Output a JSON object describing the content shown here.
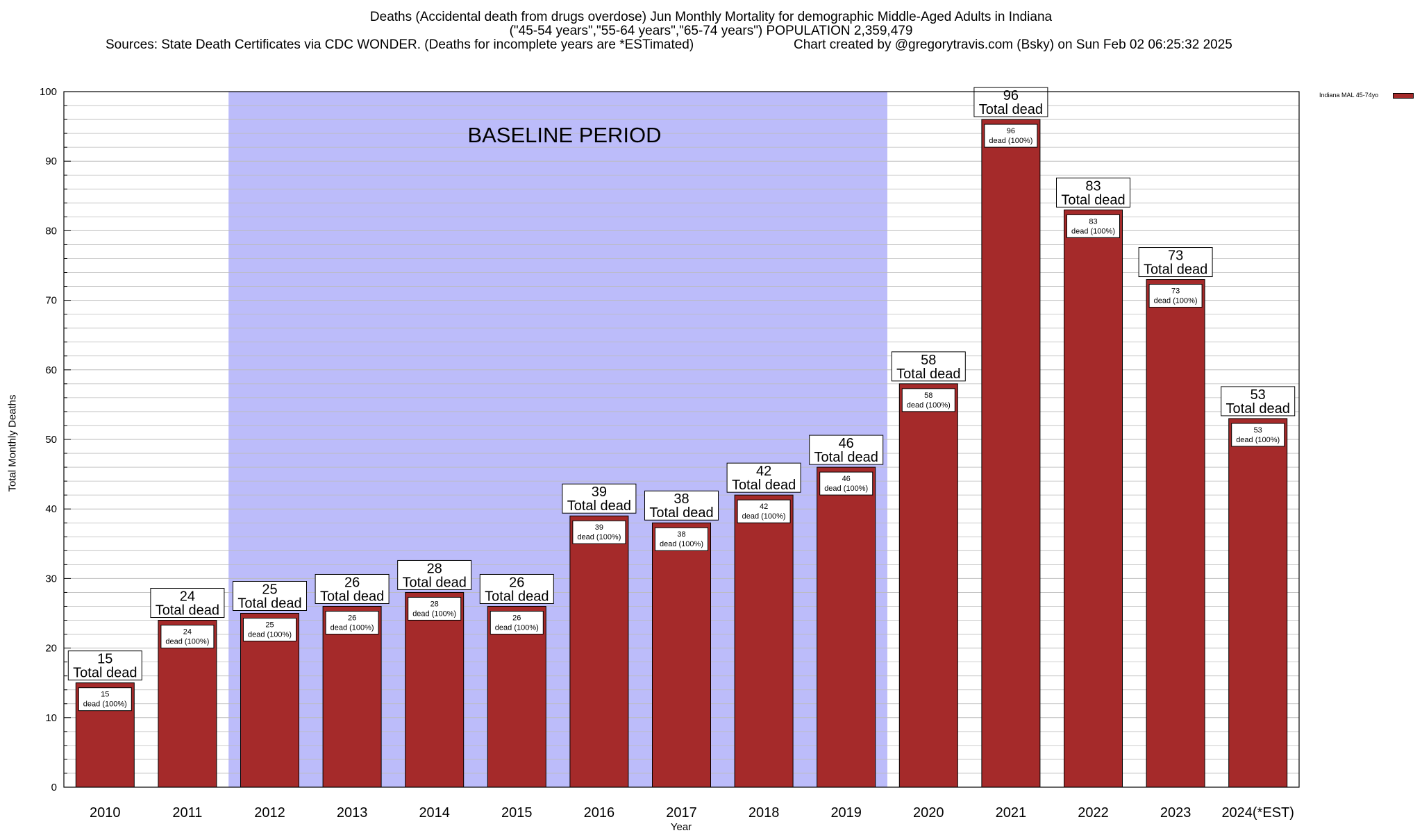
{
  "header": {
    "title_line1": "Deaths (Accidental death from drugs overdose) Jun Monthly Mortality for demographic Middle-Aged Adults in Indiana",
    "title_line2": "(\"45-54 years\",\"55-64 years\",\"65-74 years\") POPULATION 2,359,479",
    "title_line3_left": "Sources: State Death Certificates via CDC WONDER. (Deaths for incomplete years are *ESTimated)",
    "title_line3_right": "Chart created by @gregorytravis.com (Bsky) on Sun Feb 02 06:25:32 2025"
  },
  "colors": {
    "bar": "#a52a2a",
    "baseline_shade": "#bcbcfa",
    "grid": "#bbbbbb"
  },
  "chart_data": {
    "type": "bar",
    "title": "Deaths (Accidental death from drugs overdose) Jun Monthly Mortality for demographic Middle-Aged Adults in Indiana",
    "xlabel": "Year",
    "ylabel": "Total Monthly Deaths",
    "ylim": [
      0,
      100
    ],
    "yticks": [
      0,
      10,
      20,
      30,
      40,
      50,
      60,
      70,
      80,
      90,
      100
    ],
    "categories": [
      "2010",
      "2011",
      "2012",
      "2013",
      "2014",
      "2015",
      "2016",
      "2017",
      "2018",
      "2019",
      "2020",
      "2021",
      "2022",
      "2023",
      "2024(*EST)"
    ],
    "series": [
      {
        "name": "Indiana MAL 45-74yo",
        "values": [
          15,
          24,
          25,
          26,
          28,
          26,
          39,
          38,
          42,
          46,
          58,
          96,
          83,
          73,
          53
        ]
      }
    ],
    "total_label": "Total dead",
    "inner_label": "dead (100%)",
    "baseline": {
      "label": "BASELINE PERIOD",
      "from": "2012",
      "to": "2019"
    },
    "grid": true,
    "legend_position": "top-right"
  }
}
